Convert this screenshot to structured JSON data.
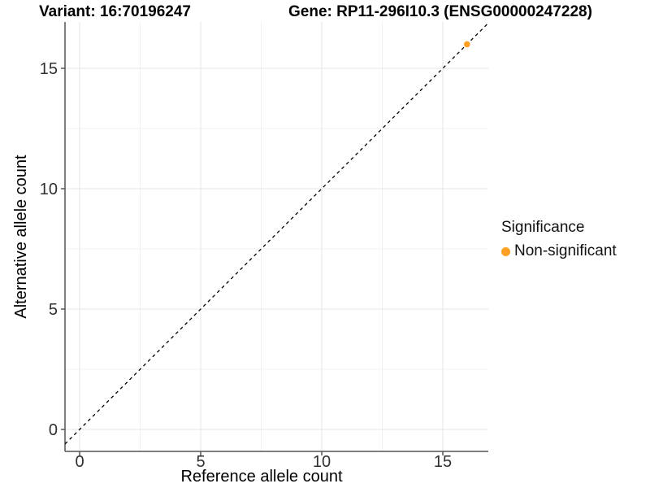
{
  "header": {
    "variant_title": "Variant: 16:70196247",
    "gene_title": "Gene: RP11-296I10.3 (ENSG00000247228)"
  },
  "legend": {
    "title": "Significance",
    "items": [
      {
        "label": "Non-significant",
        "color": "#FFA024"
      }
    ]
  },
  "chart_data": {
    "type": "scatter",
    "title": [
      "Variant: 16:70196247",
      "Gene: RP11-296I10.3 (ENSG00000247228)"
    ],
    "xlabel": "Reference allele count",
    "ylabel": "Alternative allele count",
    "xlim": [
      -0.6,
      16.9
    ],
    "ylim": [
      -0.9,
      16.9
    ],
    "x_ticks": [
      0,
      5,
      10,
      15
    ],
    "y_ticks": [
      0,
      5,
      10,
      15
    ],
    "x_minor_gridlines": [
      2.5,
      7.5,
      12.5
    ],
    "y_minor_gridlines": [
      2.5,
      7.5,
      12.5
    ],
    "grid": true,
    "legend_position": "right",
    "identity_line": {
      "style": "dashed",
      "slope": 1,
      "intercept": 0,
      "color": "#000000"
    },
    "series": [
      {
        "name": "Non-significant",
        "color": "#FFA024",
        "marker": "circle",
        "points": [
          {
            "x": 16,
            "y": 16
          }
        ]
      }
    ]
  },
  "colors": {
    "accent_orange": "#FFA024",
    "axis_line": "#555555",
    "tick_mark": "#555555",
    "grid_major": "#e6e6e6",
    "grid_minor": "#f1f1f1",
    "tick_text": "#303030",
    "title_text": "#000000"
  }
}
